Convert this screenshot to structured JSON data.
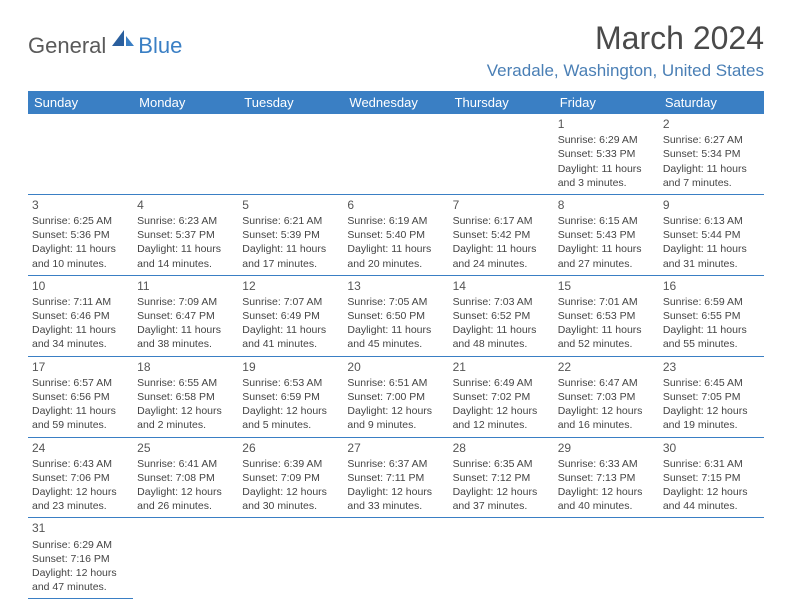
{
  "logo": {
    "text1": "General",
    "text2": "Blue"
  },
  "title": "March 2024",
  "location": "Veradale, Washington, United States",
  "colors": {
    "header_bg": "#3a7fc4",
    "header_text": "#ffffff",
    "border": "#3a7fc4",
    "logo_gray": "#5a5a5a",
    "logo_blue": "#3a7fc4",
    "location_color": "#4a7fb5"
  },
  "weekdays": [
    "Sunday",
    "Monday",
    "Tuesday",
    "Wednesday",
    "Thursday",
    "Friday",
    "Saturday"
  ],
  "first_weekday_index": 5,
  "days_in_month": 31,
  "days": {
    "1": {
      "sunrise": "6:29 AM",
      "sunset": "5:33 PM",
      "daylight": "11 hours and 3 minutes."
    },
    "2": {
      "sunrise": "6:27 AM",
      "sunset": "5:34 PM",
      "daylight": "11 hours and 7 minutes."
    },
    "3": {
      "sunrise": "6:25 AM",
      "sunset": "5:36 PM",
      "daylight": "11 hours and 10 minutes."
    },
    "4": {
      "sunrise": "6:23 AM",
      "sunset": "5:37 PM",
      "daylight": "11 hours and 14 minutes."
    },
    "5": {
      "sunrise": "6:21 AM",
      "sunset": "5:39 PM",
      "daylight": "11 hours and 17 minutes."
    },
    "6": {
      "sunrise": "6:19 AM",
      "sunset": "5:40 PM",
      "daylight": "11 hours and 20 minutes."
    },
    "7": {
      "sunrise": "6:17 AM",
      "sunset": "5:42 PM",
      "daylight": "11 hours and 24 minutes."
    },
    "8": {
      "sunrise": "6:15 AM",
      "sunset": "5:43 PM",
      "daylight": "11 hours and 27 minutes."
    },
    "9": {
      "sunrise": "6:13 AM",
      "sunset": "5:44 PM",
      "daylight": "11 hours and 31 minutes."
    },
    "10": {
      "sunrise": "7:11 AM",
      "sunset": "6:46 PM",
      "daylight": "11 hours and 34 minutes."
    },
    "11": {
      "sunrise": "7:09 AM",
      "sunset": "6:47 PM",
      "daylight": "11 hours and 38 minutes."
    },
    "12": {
      "sunrise": "7:07 AM",
      "sunset": "6:49 PM",
      "daylight": "11 hours and 41 minutes."
    },
    "13": {
      "sunrise": "7:05 AM",
      "sunset": "6:50 PM",
      "daylight": "11 hours and 45 minutes."
    },
    "14": {
      "sunrise": "7:03 AM",
      "sunset": "6:52 PM",
      "daylight": "11 hours and 48 minutes."
    },
    "15": {
      "sunrise": "7:01 AM",
      "sunset": "6:53 PM",
      "daylight": "11 hours and 52 minutes."
    },
    "16": {
      "sunrise": "6:59 AM",
      "sunset": "6:55 PM",
      "daylight": "11 hours and 55 minutes."
    },
    "17": {
      "sunrise": "6:57 AM",
      "sunset": "6:56 PM",
      "daylight": "11 hours and 59 minutes."
    },
    "18": {
      "sunrise": "6:55 AM",
      "sunset": "6:58 PM",
      "daylight": "12 hours and 2 minutes."
    },
    "19": {
      "sunrise": "6:53 AM",
      "sunset": "6:59 PM",
      "daylight": "12 hours and 5 minutes."
    },
    "20": {
      "sunrise": "6:51 AM",
      "sunset": "7:00 PM",
      "daylight": "12 hours and 9 minutes."
    },
    "21": {
      "sunrise": "6:49 AM",
      "sunset": "7:02 PM",
      "daylight": "12 hours and 12 minutes."
    },
    "22": {
      "sunrise": "6:47 AM",
      "sunset": "7:03 PM",
      "daylight": "12 hours and 16 minutes."
    },
    "23": {
      "sunrise": "6:45 AM",
      "sunset": "7:05 PM",
      "daylight": "12 hours and 19 minutes."
    },
    "24": {
      "sunrise": "6:43 AM",
      "sunset": "7:06 PM",
      "daylight": "12 hours and 23 minutes."
    },
    "25": {
      "sunrise": "6:41 AM",
      "sunset": "7:08 PM",
      "daylight": "12 hours and 26 minutes."
    },
    "26": {
      "sunrise": "6:39 AM",
      "sunset": "7:09 PM",
      "daylight": "12 hours and 30 minutes."
    },
    "27": {
      "sunrise": "6:37 AM",
      "sunset": "7:11 PM",
      "daylight": "12 hours and 33 minutes."
    },
    "28": {
      "sunrise": "6:35 AM",
      "sunset": "7:12 PM",
      "daylight": "12 hours and 37 minutes."
    },
    "29": {
      "sunrise": "6:33 AM",
      "sunset": "7:13 PM",
      "daylight": "12 hours and 40 minutes."
    },
    "30": {
      "sunrise": "6:31 AM",
      "sunset": "7:15 PM",
      "daylight": "12 hours and 44 minutes."
    },
    "31": {
      "sunrise": "6:29 AM",
      "sunset": "7:16 PM",
      "daylight": "12 hours and 47 minutes."
    }
  },
  "labels": {
    "sunrise": "Sunrise:",
    "sunset": "Sunset:",
    "daylight": "Daylight:"
  }
}
